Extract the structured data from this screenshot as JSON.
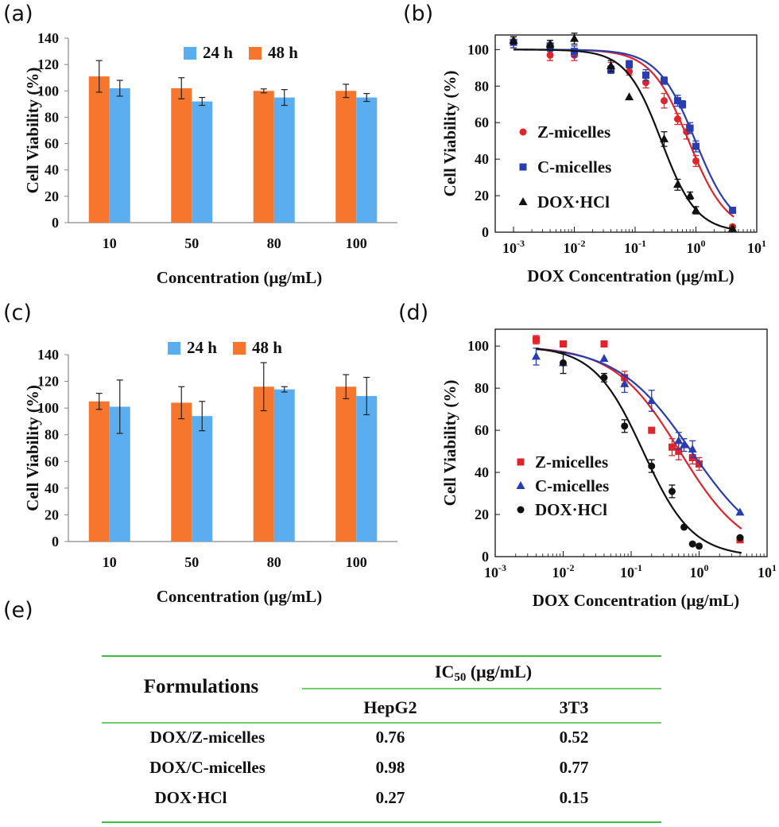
{
  "panels": {
    "a": "(a)",
    "b": "(b)",
    "c": "(c)",
    "d": "(d)",
    "e": "(e)"
  },
  "colors": {
    "bar_24h": "#5aaef0",
    "bar_48h": "#f5762c",
    "z": "#e0242c",
    "c": "#2a3db0",
    "dox": "#111111",
    "table_rule": "#3cbf3c"
  },
  "chart_data": [
    {
      "id": "a",
      "type": "bar",
      "categories": [
        "10",
        "50",
        "80",
        "100"
      ],
      "series": [
        {
          "name": "48 h",
          "values": [
            111,
            102,
            100,
            100
          ],
          "errors": [
            12,
            8,
            1.5,
            5
          ]
        },
        {
          "name": "24 h",
          "values": [
            102,
            92,
            95,
            95
          ],
          "errors": [
            6,
            3,
            6,
            3
          ]
        }
      ],
      "legend_order": [
        "24 h",
        "48 h"
      ],
      "xlabel": "Concentration (μg/mL)",
      "ylabel": "Cell Viability (%)",
      "ylim": [
        0,
        140
      ],
      "yticks": [
        0,
        20,
        40,
        60,
        80,
        100,
        120,
        140
      ],
      "legend": "top-center"
    },
    {
      "id": "b",
      "type": "scatter",
      "xscale": "log",
      "xlim": [
        0.0005,
        10
      ],
      "ylim": [
        0,
        108
      ],
      "xticks": [
        "10^-3",
        "10^-2",
        "10^-1",
        "10^0",
        "10^1"
      ],
      "yticks": [
        0,
        20,
        40,
        60,
        80,
        100
      ],
      "xlabel": "DOX Concentration (μg/mL)",
      "ylabel": "Cell Viability (%)",
      "legend": "left",
      "series": [
        {
          "name": "Z-micelles",
          "marker": "circle",
          "ic50": 0.76,
          "slope": 1.4,
          "x": [
            0.001,
            0.004,
            0.01,
            0.04,
            0.08,
            0.15,
            0.3,
            0.5,
            0.7,
            1.0,
            4.0
          ],
          "y": [
            104,
            97,
            97,
            90,
            88,
            82,
            72,
            62,
            55,
            39,
            3
          ],
          "err": [
            3,
            3,
            3,
            3,
            2,
            3,
            4,
            3,
            4,
            3,
            0
          ]
        },
        {
          "name": "C-micelles",
          "marker": "square",
          "ic50": 0.98,
          "slope": 1.4,
          "x": [
            0.001,
            0.004,
            0.01,
            0.04,
            0.08,
            0.15,
            0.3,
            0.5,
            0.6,
            0.8,
            1.0,
            4.0
          ],
          "y": [
            104,
            102,
            99,
            89,
            92,
            86,
            83,
            72,
            70,
            57,
            47,
            12
          ],
          "err": [
            3,
            3,
            3,
            2,
            2,
            3,
            2,
            3,
            2,
            3,
            3,
            0
          ]
        },
        {
          "name": "DOX·HCl",
          "marker": "triangle",
          "ic50": 0.27,
          "slope": 1.5,
          "x": [
            0.001,
            0.004,
            0.01,
            0.04,
            0.08,
            0.3,
            0.5,
            0.8,
            1.0,
            4.0
          ],
          "y": [
            105,
            103,
            106,
            91,
            74,
            51,
            26,
            20,
            12,
            2
          ],
          "err": [
            2,
            2,
            3,
            3,
            0,
            4,
            3,
            2,
            2,
            0
          ]
        }
      ]
    },
    {
      "id": "c",
      "type": "bar",
      "categories": [
        "10",
        "50",
        "80",
        "100"
      ],
      "series": [
        {
          "name": "48 h",
          "values": [
            105,
            104,
            116,
            116
          ],
          "errors": [
            6,
            12,
            18,
            9
          ]
        },
        {
          "name": "24 h",
          "values": [
            101,
            94,
            114,
            109
          ],
          "errors": [
            20,
            11,
            2,
            14
          ]
        }
      ],
      "legend_order": [
        "24 h",
        "48 h"
      ],
      "xlabel": "Concentration (μg/mL)",
      "ylabel": "Cell Viability (%)",
      "ylim": [
        0,
        140
      ],
      "yticks": [
        0,
        20,
        40,
        60,
        80,
        100,
        120,
        140
      ],
      "legend": "top-center"
    },
    {
      "id": "d",
      "type": "scatter",
      "xscale": "log",
      "xlim": [
        0.001,
        10
      ],
      "ylim": [
        0,
        108
      ],
      "xticks": [
        "10^-3",
        "10^-2",
        "10^-1",
        "10^0",
        "10^1"
      ],
      "yticks": [
        0,
        20,
        40,
        60,
        80,
        100
      ],
      "xlabel": "DOX Concentration (μg/mL)",
      "ylabel": "Cell Viability (%)",
      "legend": "bottom-left",
      "series": [
        {
          "name": "Z-micelles",
          "marker": "square",
          "ic50": 0.52,
          "slope": 0.9,
          "x": [
            0.004,
            0.01,
            0.04,
            0.08,
            0.2,
            0.4,
            0.5,
            0.8,
            1.0,
            4.0
          ],
          "y": [
            103,
            101,
            101,
            85,
            60,
            52,
            50,
            47,
            44,
            8
          ],
          "err": [
            2,
            0,
            0,
            3,
            0,
            4,
            4,
            3,
            3,
            0
          ]
        },
        {
          "name": "C-micelles",
          "marker": "triangle",
          "ic50": 0.77,
          "slope": 0.8,
          "x": [
            0.004,
            0.01,
            0.04,
            0.08,
            0.2,
            0.5,
            0.6,
            0.8,
            4.0
          ],
          "y": [
            95,
            92,
            94,
            82,
            74,
            55,
            53,
            51,
            21
          ],
          "err": [
            4,
            0,
            0,
            4,
            5,
            4,
            3,
            4,
            0
          ]
        },
        {
          "name": "DOX·HCl",
          "marker": "circle",
          "ic50": 0.15,
          "slope": 1.2,
          "x": [
            0.01,
            0.04,
            0.08,
            0.2,
            0.4,
            0.6,
            0.8,
            1.0,
            4.0
          ],
          "y": [
            92,
            85,
            62,
            43,
            31,
            14,
            6,
            5,
            9
          ],
          "err": [
            5,
            2,
            3,
            3,
            3,
            0,
            0,
            0,
            0
          ]
        }
      ]
    }
  ],
  "table": {
    "header_left": "Formulations",
    "header_group": "IC",
    "header_group_sub": "50",
    "header_group_unit": " (μg/mL)",
    "columns": [
      "HepG2",
      "3T3"
    ],
    "rows": [
      {
        "name": "DOX/Z-micelles",
        "values": [
          "0.76",
          "0.52"
        ]
      },
      {
        "name": "DOX/C-micelles",
        "values": [
          "0.98",
          "0.77"
        ]
      },
      {
        "name": "DOX·HCl",
        "values": [
          "0.27",
          "0.15"
        ]
      }
    ]
  }
}
